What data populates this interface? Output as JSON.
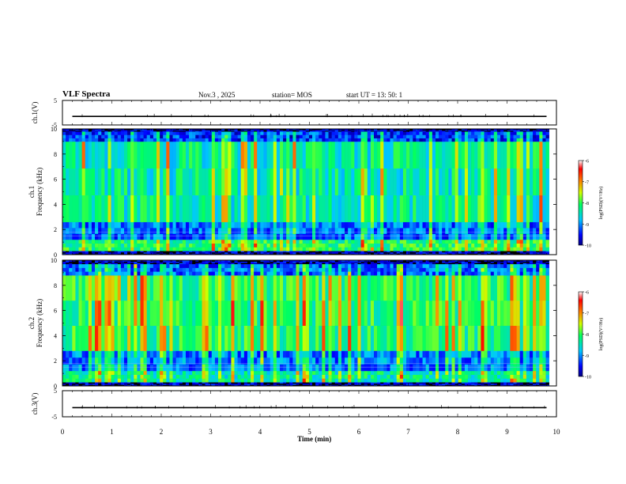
{
  "header": {
    "title": "VLF Spectra",
    "date": "Nov.3 , 2025",
    "station": "station= MOS",
    "start_ut": "start UT = 13: 50: 1"
  },
  "chart_data": [
    {
      "type": "line",
      "panel": "ch1-waveform",
      "ylabel": "ch.1(V)",
      "yticks": [
        "5",
        "-5"
      ],
      "ylim": [
        -5,
        5
      ],
      "xlim": [
        0,
        10
      ],
      "series": [
        {
          "level": -1.5
        }
      ]
    },
    {
      "type": "heatmap",
      "panel": "ch1-spectrogram",
      "ylabel": "ch.1 Frequency (kHz)",
      "yticks": [
        "0",
        "2",
        "4",
        "6",
        "8",
        "10"
      ],
      "ylim": [
        0,
        10
      ],
      "xlim": [
        0,
        10
      ],
      "colorbar": {
        "label": "log(PSD)(V²/Hz)",
        "ticks": [
          "-6",
          "-7",
          "-8",
          "-9",
          "-10"
        ],
        "range": [
          -10,
          -6
        ]
      },
      "bands": [
        {
          "from": 0.0,
          "to": 0.3,
          "level": -10
        },
        {
          "from": 0.3,
          "to": 1.2,
          "level": -8.3
        },
        {
          "from": 1.2,
          "to": 2.6,
          "level": -9.4
        },
        {
          "from": 2.6,
          "to": 9.0,
          "level": -8.6
        },
        {
          "from": 9.0,
          "to": 9.8,
          "level": -9.6
        },
        {
          "from": 9.8,
          "to": 10.0,
          "level": -10
        }
      ]
    },
    {
      "type": "heatmap",
      "panel": "ch2-spectrogram",
      "ylabel": "ch.2 Frequency (kHz)",
      "yticks": [
        "0",
        "2",
        "4",
        "6",
        "8",
        "10"
      ],
      "ylim": [
        0,
        10
      ],
      "xlim": [
        0,
        10
      ],
      "colorbar": {
        "label": "log(PSD)(V²/Hz)",
        "ticks": [
          "-6",
          "-7",
          "-8",
          "-9",
          "-10"
        ],
        "range": [
          -10,
          -6
        ]
      },
      "bands": [
        {
          "from": 0.0,
          "to": 0.3,
          "level": -10
        },
        {
          "from": 0.3,
          "to": 1.2,
          "level": -8.6
        },
        {
          "from": 1.2,
          "to": 2.8,
          "level": -9.3
        },
        {
          "from": 2.8,
          "to": 8.8,
          "level": -8.3
        },
        {
          "from": 8.8,
          "to": 9.7,
          "level": -9.4
        },
        {
          "from": 9.7,
          "to": 10.0,
          "level": -10
        }
      ]
    },
    {
      "type": "line",
      "panel": "ch3-waveform",
      "ylabel": "ch.3(V)",
      "yticks": [
        "5",
        "-5"
      ],
      "ylim": [
        -5,
        5
      ],
      "xlim": [
        0,
        10
      ],
      "series": [
        {
          "level": -1.5
        }
      ]
    }
  ],
  "xaxis": {
    "label": "Time (min)",
    "ticks": [
      "0",
      "1",
      "2",
      "3",
      "4",
      "5",
      "6",
      "7",
      "8",
      "9",
      "10"
    ],
    "range": [
      0,
      10
    ]
  }
}
